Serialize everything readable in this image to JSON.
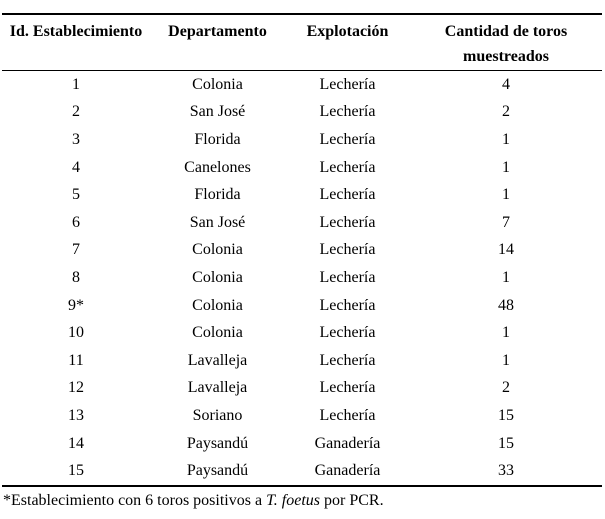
{
  "page": {
    "background_color": "#ffffff",
    "text_color": "#000000",
    "rule_color": "#000000"
  },
  "table": {
    "header": {
      "id": "Id. Establecimiento",
      "departamento": "Departamento",
      "explotacion": "Explotación",
      "cantidad_line1": "Cantidad de toros",
      "cantidad_line2": "muestreados"
    },
    "rows": [
      {
        "id": "1",
        "departamento": "Colonia",
        "explotacion": "Lechería",
        "cantidad": "4"
      },
      {
        "id": "2",
        "departamento": "San José",
        "explotacion": "Lechería",
        "cantidad": "2"
      },
      {
        "id": "3",
        "departamento": "Florida",
        "explotacion": "Lechería",
        "cantidad": "1"
      },
      {
        "id": "4",
        "departamento": "Canelones",
        "explotacion": "Lechería",
        "cantidad": "1"
      },
      {
        "id": "5",
        "departamento": "Florida",
        "explotacion": "Lechería",
        "cantidad": "1"
      },
      {
        "id": "6",
        "departamento": "San José",
        "explotacion": "Lechería",
        "cantidad": "7"
      },
      {
        "id": "7",
        "departamento": "Colonia",
        "explotacion": "Lechería",
        "cantidad": "14"
      },
      {
        "id": "8",
        "departamento": "Colonia",
        "explotacion": "Lechería",
        "cantidad": "1"
      },
      {
        "id": "9*",
        "departamento": "Colonia",
        "explotacion": "Lechería",
        "cantidad": "48"
      },
      {
        "id": "10",
        "departamento": "Colonia",
        "explotacion": "Lechería",
        "cantidad": "1"
      },
      {
        "id": "11",
        "departamento": "Lavalleja",
        "explotacion": "Lechería",
        "cantidad": "1"
      },
      {
        "id": "12",
        "departamento": "Lavalleja",
        "explotacion": "Lechería",
        "cantidad": "2"
      },
      {
        "id": "13",
        "departamento": "Soriano",
        "explotacion": "Lechería",
        "cantidad": "15"
      },
      {
        "id": "14",
        "departamento": "Paysandú",
        "explotacion": "Ganadería",
        "cantidad": "15"
      },
      {
        "id": "15",
        "departamento": "Paysandú",
        "explotacion": "Ganadería",
        "cantidad": "33"
      }
    ],
    "footnote": {
      "prefix": "*Establecimiento con 6 toros positivos a ",
      "species_italic": "T. foetus",
      "suffix": " por PCR."
    }
  }
}
